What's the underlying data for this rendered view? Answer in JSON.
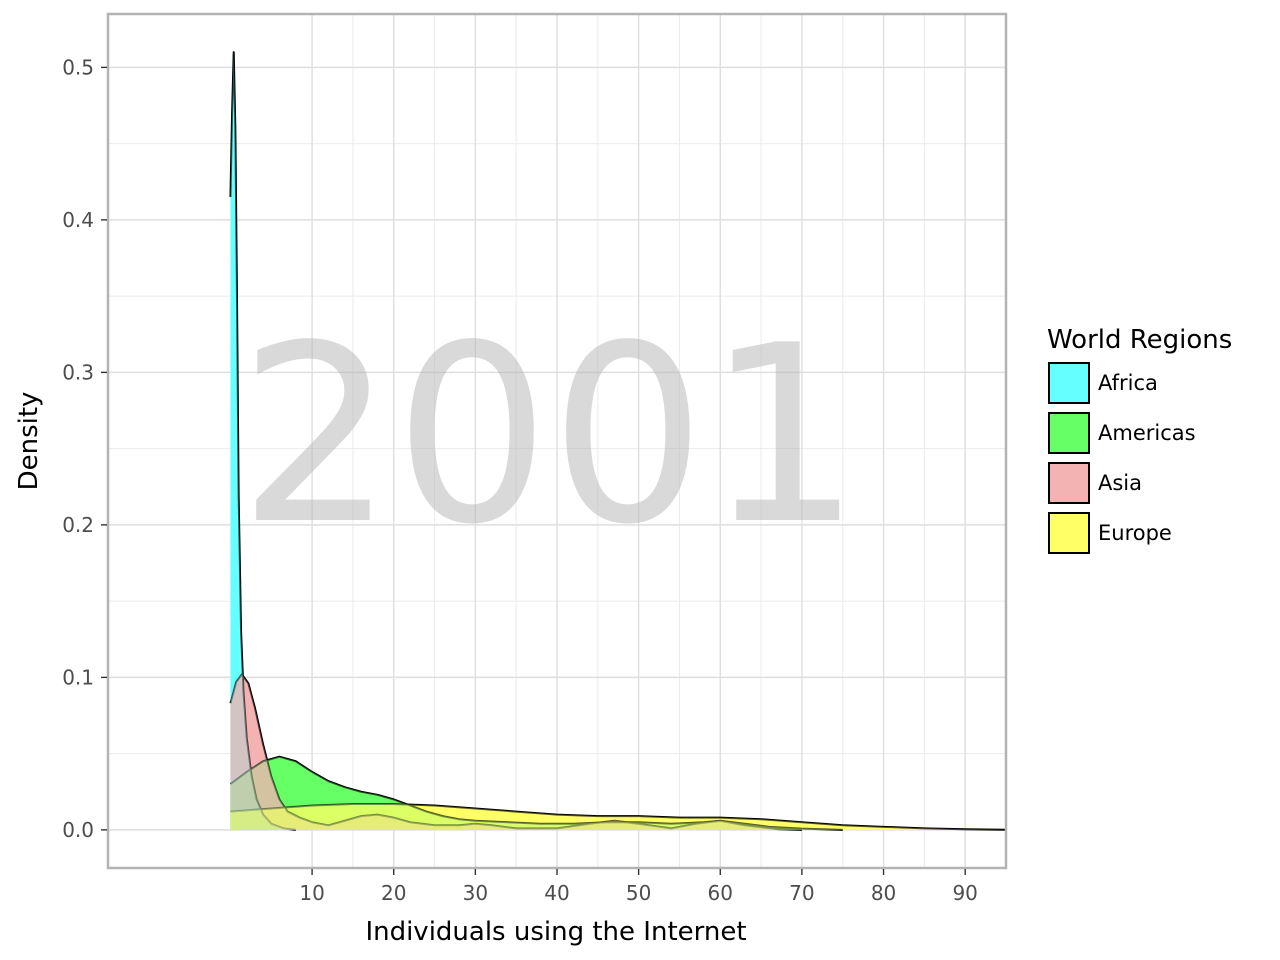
{
  "chart_data": {
    "type": "area",
    "subtype": "density",
    "title": "",
    "watermark_text": "2001",
    "xlabel": "Individuals using the Internet",
    "ylabel": "Density",
    "xlim": [
      -15,
      95
    ],
    "ylim": [
      -0.025,
      0.535
    ],
    "x_ticks": [
      10,
      20,
      30,
      40,
      50,
      60,
      70,
      80,
      90
    ],
    "y_ticks": [
      0.0,
      0.1,
      0.2,
      0.3,
      0.4,
      0.5
    ],
    "x_tick_labels": [
      "10",
      "20",
      "30",
      "40",
      "50",
      "60",
      "70",
      "80",
      "90"
    ],
    "y_tick_labels": [
      "0.0",
      "0.1",
      "0.2",
      "0.3",
      "0.4",
      "0.5"
    ],
    "grid": true,
    "legend": {
      "title": "World Regions",
      "position": "right"
    },
    "series": [
      {
        "name": "Africa",
        "color": "#66ffff",
        "points": [
          [
            0,
            0.415
          ],
          [
            0.2,
            0.47
          ],
          [
            0.4,
            0.51
          ],
          [
            0.6,
            0.46
          ],
          [
            0.8,
            0.35
          ],
          [
            1.0,
            0.22
          ],
          [
            1.3,
            0.13
          ],
          [
            1.6,
            0.09
          ],
          [
            2.0,
            0.06
          ],
          [
            2.6,
            0.035
          ],
          [
            3.2,
            0.02
          ],
          [
            4.0,
            0.01
          ],
          [
            5.0,
            0.004
          ],
          [
            6.5,
            0.001
          ],
          [
            8.0,
            0.0
          ]
        ]
      },
      {
        "name": "Americas",
        "color": "#66ff66",
        "points": [
          [
            0,
            0.03
          ],
          [
            2,
            0.038
          ],
          [
            4,
            0.045
          ],
          [
            6,
            0.048
          ],
          [
            8,
            0.045
          ],
          [
            10,
            0.038
          ],
          [
            12,
            0.032
          ],
          [
            14,
            0.028
          ],
          [
            16,
            0.025
          ],
          [
            18,
            0.023
          ],
          [
            20,
            0.02
          ],
          [
            22,
            0.016
          ],
          [
            24,
            0.012
          ],
          [
            26,
            0.009
          ],
          [
            28,
            0.007
          ],
          [
            30,
            0.006
          ],
          [
            34,
            0.005
          ],
          [
            38,
            0.004
          ],
          [
            42,
            0.004
          ],
          [
            46,
            0.005
          ],
          [
            50,
            0.005
          ],
          [
            54,
            0.004
          ],
          [
            58,
            0.005
          ],
          [
            60,
            0.006
          ],
          [
            63,
            0.004
          ],
          [
            66,
            0.002
          ],
          [
            70,
            0.0008
          ],
          [
            75,
            0.0
          ]
        ]
      },
      {
        "name": "Asia",
        "color": "#f4b3b3",
        "points": [
          [
            0,
            0.083
          ],
          [
            0.7,
            0.097
          ],
          [
            1.4,
            0.102
          ],
          [
            2.2,
            0.096
          ],
          [
            3.0,
            0.08
          ],
          [
            4.0,
            0.056
          ],
          [
            5.0,
            0.035
          ],
          [
            6.0,
            0.02
          ],
          [
            7.0,
            0.012
          ],
          [
            8.5,
            0.008
          ],
          [
            10,
            0.005
          ],
          [
            12,
            0.003
          ],
          [
            14,
            0.006
          ],
          [
            16,
            0.009
          ],
          [
            18,
            0.01
          ],
          [
            20,
            0.008
          ],
          [
            22,
            0.005
          ],
          [
            25,
            0.003
          ],
          [
            28,
            0.003
          ],
          [
            30,
            0.004
          ],
          [
            32,
            0.003
          ],
          [
            35,
            0.001
          ],
          [
            40,
            0.001
          ],
          [
            44,
            0.004
          ],
          [
            47,
            0.006
          ],
          [
            50,
            0.004
          ],
          [
            54,
            0.001
          ],
          [
            57,
            0.004
          ],
          [
            60,
            0.006
          ],
          [
            63,
            0.003
          ],
          [
            67,
            0.0005
          ],
          [
            70,
            0.0
          ]
        ]
      },
      {
        "name": "Europe",
        "color": "#ffff66",
        "points": [
          [
            0,
            0.012
          ],
          [
            5,
            0.014
          ],
          [
            10,
            0.016
          ],
          [
            15,
            0.017
          ],
          [
            20,
            0.017
          ],
          [
            25,
            0.016
          ],
          [
            30,
            0.014
          ],
          [
            35,
            0.012
          ],
          [
            40,
            0.01
          ],
          [
            45,
            0.009
          ],
          [
            50,
            0.009
          ],
          [
            55,
            0.008
          ],
          [
            60,
            0.008
          ],
          [
            65,
            0.007
          ],
          [
            70,
            0.005
          ],
          [
            75,
            0.003
          ],
          [
            80,
            0.002
          ],
          [
            85,
            0.001
          ],
          [
            90,
            0.0004
          ],
          [
            95,
            0.0001
          ],
          [
            100,
            0.0
          ]
        ]
      }
    ]
  }
}
